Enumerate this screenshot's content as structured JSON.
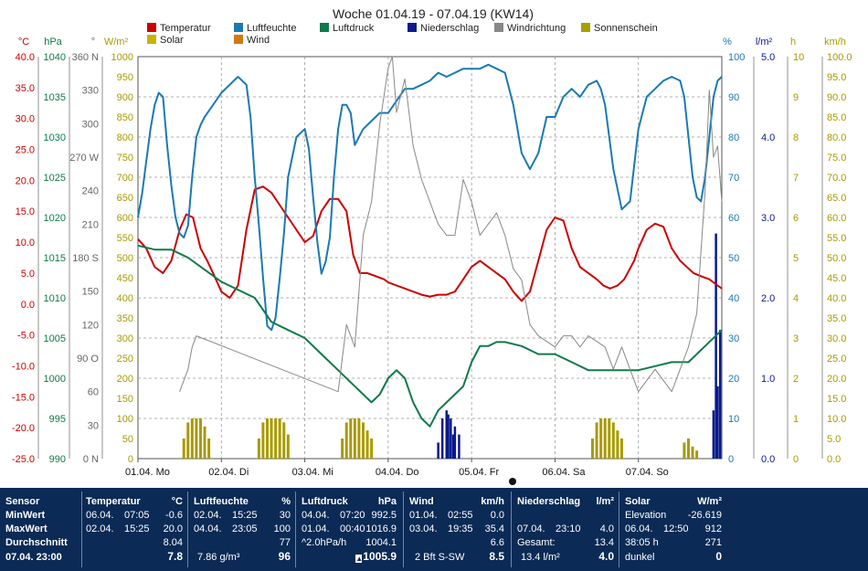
{
  "chart_data": {
    "type": "line",
    "title": "Woche 01.04.19 - 07.04.19 (KW14)",
    "x_range": [
      0,
      7
    ],
    "x_ticks": [
      {
        "date": "01.04.",
        "day": "Mo"
      },
      {
        "date": "02.04.",
        "day": "Di"
      },
      {
        "date": "03.04.",
        "day": "Mi"
      },
      {
        "date": "04.04.",
        "day": "Do"
      },
      {
        "date": "05.04.",
        "day": "Fr"
      },
      {
        "date": "06.04.",
        "day": "Sa"
      },
      {
        "date": "07.04.",
        "day": "So"
      }
    ],
    "grid": true,
    "legend": [
      {
        "name": "Temperatur",
        "color": "#cc0000"
      },
      {
        "name": "Luftfeuchte",
        "color": "#1a7ab0"
      },
      {
        "name": "Luftdruck",
        "color": "#0e7a4a"
      },
      {
        "name": "Niederschlag",
        "color": "#0a1a8c"
      },
      {
        "name": "Windrichtung",
        "color": "#888888"
      },
      {
        "name": "Sonnenschein",
        "color": "#a8a000"
      },
      {
        "name": "Solar",
        "color": "#c8b400"
      },
      {
        "name": "Wind",
        "color": "#d07a10"
      }
    ],
    "axes": {
      "temperature": {
        "unit": "°C",
        "color": "#cc0000",
        "range": [
          -25,
          40
        ],
        "ticks": [
          "40.0",
          "35.0",
          "30.0",
          "25.0",
          "20.0",
          "15.0",
          "10.0",
          "5.0",
          "0.0",
          "-5.0",
          "-10.0",
          "-15.0",
          "-20.0",
          "-25.0"
        ]
      },
      "pressure": {
        "unit": "hPa",
        "color": "#0e7a4a",
        "range": [
          990,
          1040
        ],
        "ticks": [
          "1040",
          "1035",
          "1030",
          "1025",
          "1020",
          "1015",
          "1010",
          "1005",
          "1000",
          "995",
          "990"
        ]
      },
      "wind_direction": {
        "unit": "°",
        "color": "#666666",
        "range": [
          0,
          360
        ],
        "ticks": [
          "360 N",
          "330",
          "300",
          "270 W",
          "240",
          "210",
          "180 S",
          "150",
          "120",
          "90 O",
          "60",
          "30",
          "0 N"
        ]
      },
      "solar": {
        "unit": "W/m²",
        "color": "#a89a00",
        "range": [
          0,
          1000
        ],
        "ticks": [
          "1000",
          "950",
          "900",
          "850",
          "800",
          "750",
          "700",
          "650",
          "600",
          "550",
          "500",
          "450",
          "400",
          "350",
          "300",
          "250",
          "200",
          "150",
          "100",
          "50",
          "0"
        ]
      },
      "humidity": {
        "unit": "%",
        "color": "#1a7ab0",
        "range": [
          0,
          100
        ],
        "ticks": [
          "100",
          "90",
          "80",
          "70",
          "60",
          "50",
          "40",
          "30",
          "20",
          "10",
          "0"
        ]
      },
      "precipitation": {
        "unit": "l/m²",
        "color": "#0a1a8c",
        "range": [
          0,
          5
        ],
        "ticks": [
          "5.0",
          "4.0",
          "3.0",
          "2.0",
          "1.0",
          "0.0"
        ]
      },
      "sunshine": {
        "unit": "h",
        "color": "#a89a00",
        "range": [
          0,
          10
        ],
        "ticks": [
          "10",
          "9",
          "8",
          "7",
          "6",
          "5",
          "4",
          "3",
          "2",
          "1",
          "0"
        ]
      },
      "wind_speed": {
        "unit": "km/h",
        "color": "#a89a00",
        "range": [
          0,
          100
        ],
        "ticks": [
          "100.0",
          "95.0",
          "90.0",
          "85.0",
          "80.0",
          "75.0",
          "70.0",
          "65.0",
          "60.0",
          "55.0",
          "50.0",
          "45.0",
          "40.0",
          "35.0",
          "30.0",
          "25.0",
          "20.0",
          "15.0",
          "10.0",
          "5.0",
          "0.0"
        ]
      }
    },
    "series": [
      {
        "name": "Temperatur",
        "axis": "temperature",
        "color": "#cc0000",
        "x": [
          0,
          0.1,
          0.2,
          0.3,
          0.4,
          0.5,
          0.58,
          0.66,
          0.75,
          0.83,
          0.9,
          1.0,
          1.1,
          1.2,
          1.3,
          1.4,
          1.5,
          1.6,
          1.7,
          1.8,
          1.9,
          2.0,
          2.1,
          2.2,
          2.3,
          2.4,
          2.5,
          2.58,
          2.66,
          2.75,
          2.85,
          2.95,
          3.0,
          3.1,
          3.2,
          3.3,
          3.4,
          3.5,
          3.6,
          3.7,
          3.8,
          3.9,
          4.0,
          4.1,
          4.2,
          4.3,
          4.4,
          4.5,
          4.6,
          4.7,
          4.8,
          4.9,
          5.0,
          5.1,
          5.2,
          5.3,
          5.4,
          5.5,
          5.58,
          5.66,
          5.75,
          5.83,
          5.95,
          6.0,
          6.1,
          6.2,
          6.3,
          6.4,
          6.5,
          6.58,
          6.66,
          6.75,
          6.85,
          6.95,
          7.0
        ],
        "y": [
          10.5,
          9,
          6,
          5,
          7,
          12,
          14.5,
          14,
          9,
          7,
          5,
          2,
          1,
          3,
          12,
          18.5,
          19,
          18,
          16,
          14,
          12,
          10,
          11,
          15,
          17,
          17,
          15,
          8,
          5,
          5,
          4.5,
          4,
          3.5,
          3,
          2.5,
          2,
          1.5,
          1.2,
          1.5,
          1.5,
          2,
          4,
          6,
          7,
          6,
          5,
          4,
          2,
          0.5,
          2,
          7,
          12,
          14,
          13.5,
          9,
          6,
          5,
          4,
          3,
          2.5,
          3,
          4,
          7,
          9,
          12,
          13,
          12.5,
          9,
          7,
          6,
          5,
          4.5,
          4,
          3,
          2.5
        ]
      },
      {
        "name": "Luftfeuchte",
        "axis": "humidity",
        "color": "#1a7ab0",
        "x": [
          0,
          0.05,
          0.1,
          0.15,
          0.2,
          0.25,
          0.3,
          0.35,
          0.4,
          0.45,
          0.5,
          0.55,
          0.6,
          0.65,
          0.7,
          0.75,
          0.8,
          0.9,
          1.0,
          1.1,
          1.2,
          1.3,
          1.35,
          1.4,
          1.45,
          1.5,
          1.55,
          1.6,
          1.65,
          1.7,
          1.75,
          1.8,
          1.9,
          2.0,
          2.05,
          2.1,
          2.15,
          2.2,
          2.25,
          2.3,
          2.35,
          2.4,
          2.45,
          2.5,
          2.55,
          2.6,
          2.7,
          2.8,
          2.9,
          3.0,
          3.1,
          3.2,
          3.3,
          3.4,
          3.5,
          3.6,
          3.7,
          3.8,
          3.9,
          4.0,
          4.1,
          4.2,
          4.3,
          4.4,
          4.5,
          4.6,
          4.7,
          4.8,
          4.9,
          5.0,
          5.1,
          5.2,
          5.3,
          5.4,
          5.5,
          5.55,
          5.6,
          5.65,
          5.7,
          5.8,
          5.9,
          6.0,
          6.1,
          6.2,
          6.3,
          6.4,
          6.5,
          6.55,
          6.6,
          6.65,
          6.7,
          6.75,
          6.8,
          6.85,
          6.9,
          6.95,
          7.0
        ],
        "y": [
          60,
          66,
          74,
          82,
          88,
          91,
          90,
          78,
          68,
          60,
          56,
          55,
          58,
          70,
          80,
          83,
          85,
          88,
          91,
          93,
          95,
          93,
          85,
          70,
          58,
          45,
          33,
          32,
          35,
          45,
          56,
          70,
          80,
          82,
          77,
          65,
          54,
          46,
          49,
          55,
          70,
          82,
          88,
          88,
          86,
          78,
          82,
          84,
          86,
          86,
          89,
          92,
          92,
          93,
          94,
          96,
          95,
          96,
          97,
          97,
          97,
          98,
          97,
          96,
          88,
          76,
          72,
          76,
          85,
          85,
          90,
          92,
          90,
          93,
          94,
          92,
          88,
          80,
          72,
          62,
          64,
          82,
          90,
          92,
          94,
          95,
          94,
          90,
          80,
          70,
          65,
          64,
          70,
          80,
          90,
          94,
          95
        ]
      },
      {
        "name": "Luftdruck",
        "axis": "pressure",
        "color": "#0e7a4a",
        "x": [
          0,
          0.2,
          0.4,
          0.6,
          0.8,
          1.0,
          1.2,
          1.4,
          1.6,
          1.8,
          2.0,
          2.2,
          2.4,
          2.6,
          2.8,
          2.9,
          3.0,
          3.1,
          3.2,
          3.3,
          3.4,
          3.5,
          3.6,
          3.7,
          3.8,
          3.9,
          4.0,
          4.1,
          4.2,
          4.3,
          4.4,
          4.6,
          4.8,
          5.0,
          5.2,
          5.4,
          5.6,
          5.8,
          6.0,
          6.2,
          6.4,
          6.6,
          6.8,
          7.0
        ],
        "y": [
          1016.5,
          1016,
          1016,
          1015,
          1013.5,
          1012,
          1011,
          1010,
          1007,
          1006,
          1005,
          1003,
          1001,
          999,
          997,
          998,
          1000,
          1001,
          1000,
          997,
          995,
          994,
          996,
          997,
          998,
          999,
          1002,
          1004,
          1004,
          1004.5,
          1004.5,
          1004,
          1003,
          1003,
          1002,
          1001,
          1001,
          1001,
          1001,
          1001.5,
          1002,
          1002,
          1004,
          1006
        ]
      },
      {
        "name": "Windrichtung",
        "axis": "wind_direction",
        "color": "#888888",
        "x": [
          0.5,
          0.6,
          0.65,
          0.7,
          2.4,
          2.5,
          2.6,
          2.7,
          2.8,
          2.9,
          3.0,
          3.05,
          3.1,
          3.2,
          3.3,
          3.4,
          3.5,
          3.6,
          3.7,
          3.8,
          3.9,
          4.0,
          4.1,
          4.2,
          4.3,
          4.4,
          4.5,
          4.6,
          4.7,
          4.8,
          5.0,
          5.1,
          5.2,
          5.3,
          5.4,
          5.5,
          5.6,
          5.7,
          5.8,
          6.0,
          6.2,
          6.4,
          6.6,
          6.7,
          6.8,
          6.85,
          6.9,
          6.95,
          7.0
        ],
        "y": [
          60,
          80,
          100,
          110,
          60,
          120,
          100,
          200,
          230,
          300,
          350,
          360,
          310,
          340,
          280,
          250,
          230,
          210,
          200,
          200,
          250,
          230,
          200,
          210,
          220,
          200,
          170,
          160,
          120,
          110,
          100,
          110,
          110,
          100,
          110,
          105,
          100,
          80,
          100,
          60,
          80,
          60,
          100,
          130,
          240,
          330,
          270,
          280,
          230
        ]
      },
      {
        "name": "Sonnenschein",
        "axis": "sunshine",
        "color": "#a89a00",
        "type": "bar",
        "x": [
          0.55,
          0.6,
          0.65,
          0.7,
          0.75,
          0.8,
          0.85,
          1.45,
          1.5,
          1.55,
          1.6,
          1.65,
          1.7,
          1.75,
          1.8,
          2.45,
          2.5,
          2.55,
          2.6,
          2.65,
          2.7,
          2.75,
          2.8,
          5.45,
          5.5,
          5.55,
          5.6,
          5.65,
          5.7,
          5.75,
          5.8,
          6.55,
          6.6,
          6.65,
          6.7
        ],
        "y": [
          0.5,
          0.9,
          1,
          1,
          1,
          0.8,
          0.5,
          0.5,
          0.9,
          1,
          1,
          1,
          1,
          0.9,
          0.6,
          0.5,
          0.9,
          1,
          1,
          1,
          0.9,
          0.7,
          0.5,
          0.5,
          0.9,
          1,
          1,
          1,
          0.9,
          0.7,
          0.5,
          0.4,
          0.5,
          0.3,
          0.2
        ]
      },
      {
        "name": "Niederschlag",
        "axis": "precipitation",
        "color": "#0a1a8c",
        "type": "bar",
        "x": [
          3.6,
          3.65,
          3.7,
          3.72,
          3.75,
          3.78,
          3.8,
          3.85,
          6.9,
          6.93,
          6.95,
          6.98
        ],
        "y": [
          0.2,
          0.5,
          0.6,
          0.55,
          0.5,
          0.3,
          0.4,
          0.3,
          0.6,
          2.8,
          0.9,
          1.6
        ]
      }
    ],
    "marker_label": "0"
  },
  "summary": {
    "columns": [
      {
        "header": "Sensor",
        "rows": [
          {
            "label": "MinWert"
          },
          {
            "label": "MaxWert"
          },
          {
            "label": "Durchschnitt"
          },
          {
            "label": "07.04. 23:00"
          }
        ]
      },
      {
        "header": "Temperatur",
        "unit": "°C",
        "rows": [
          {
            "date": "06.04.",
            "time": "07:05",
            "value": "-0.6"
          },
          {
            "date": "02.04.",
            "time": "15:25",
            "value": "20.0"
          },
          {
            "date": "",
            "time": "",
            "value": "8.04"
          },
          {
            "date": "",
            "time": "",
            "value": "7.8"
          }
        ]
      },
      {
        "header": "Luftfeuchte",
        "unit": "%",
        "rows": [
          {
            "date": "02.04.",
            "time": "15:25",
            "value": "30"
          },
          {
            "date": "04.04.",
            "time": "23:05",
            "value": "100"
          },
          {
            "date": "",
            "time": "",
            "value": "77"
          },
          {
            "date": "7.86 g/m³",
            "time": "",
            "value": "96"
          }
        ]
      },
      {
        "header": "Luftdruck",
        "unit": "hPa",
        "rows": [
          {
            "date": "04.04.",
            "time": "07:20",
            "value": "992.5"
          },
          {
            "date": "01.04.",
            "time": "00:40",
            "value": "1016.9"
          },
          {
            "date": "^2.0hPa/h",
            "time": "",
            "value": "1004.1"
          },
          {
            "date": "",
            "time": "",
            "value": "1005.9"
          }
        ]
      },
      {
        "header": "Wind",
        "unit": "km/h",
        "rows": [
          {
            "date": "01.04.",
            "time": "02:55",
            "value": "0.0"
          },
          {
            "date": "03.04.",
            "time": "19:35",
            "value": "35.4"
          },
          {
            "date": "",
            "time": "",
            "value": "6.6"
          },
          {
            "date": "2 Bft S-SW",
            "time": "",
            "value": "8.5"
          }
        ]
      },
      {
        "header": "Niederschlag",
        "unit": "l/m²",
        "rows": [
          {
            "date": "",
            "time": "",
            "value": ""
          },
          {
            "date": "07.04.",
            "time": "23:10",
            "value": "4.0"
          },
          {
            "date": "Gesamt:",
            "time": "",
            "value": "13.4"
          },
          {
            "date": "13.4 l/m²",
            "time": "",
            "value": "4.0"
          }
        ]
      },
      {
        "header": "Solar",
        "unit": "W/m²",
        "rows": [
          {
            "date": "Elevation",
            "time": "",
            "value": "-26.619"
          },
          {
            "date": "06.04.",
            "time": "12:50",
            "value": "912"
          },
          {
            "date": "38:05 h",
            "time": "",
            "value": "271"
          },
          {
            "date": "dunkel",
            "time": "",
            "value": "0"
          }
        ]
      }
    ]
  }
}
